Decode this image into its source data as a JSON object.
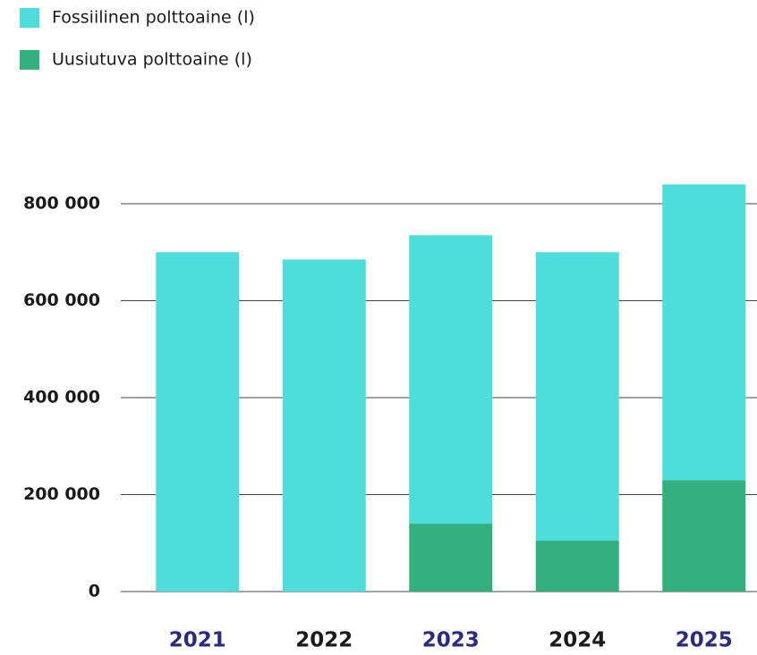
{
  "chart_data": {
    "type": "stacked_bar",
    "categories": [
      "2021",
      "2022",
      "2023",
      "2024",
      "2025"
    ],
    "category_label_colors": [
      "#2b2a7c",
      "#1a1a1a",
      "#2b2a7c",
      "#1a1a1a",
      "#2b2a7c"
    ],
    "series": [
      {
        "name": "Fossiilinen polttoaine (l)",
        "color": "#4fdddb",
        "values": [
          700000,
          685000,
          595000,
          595000,
          610000
        ]
      },
      {
        "name": "Uusiutuva polttoaine (l)",
        "color": "#34b07f",
        "values": [
          0,
          0,
          140000,
          105000,
          230000
        ]
      }
    ],
    "stack_order": [
      1,
      0
    ],
    "ylim": [
      0,
      850000
    ],
    "yticks": [
      0,
      {
        "value": 200000,
        "label": "200 000"
      },
      {
        "value": 400000,
        "label": "400 000"
      },
      {
        "value": 600000,
        "label": "600 000"
      },
      {
        "value": 800000,
        "label": "800 000"
      }
    ],
    "grid": true
  }
}
